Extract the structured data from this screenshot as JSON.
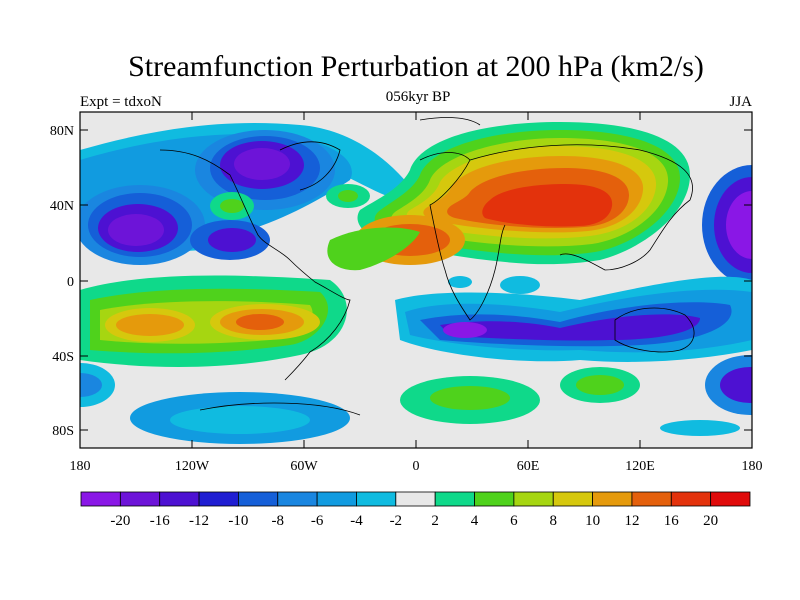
{
  "title": "Streamfunction Perturbation at 200 hPa (km2/s)",
  "left_subtitle": "Expt = tdxoN",
  "center_subtitle": "056kyr BP",
  "right_subtitle": "JJA",
  "lat_labels": [
    "80N",
    "40N",
    "0",
    "40S",
    "80S"
  ],
  "lon_labels": [
    "180",
    "120W",
    "60W",
    "0",
    "60E",
    "120E",
    "180"
  ],
  "colorbar": {
    "labels": [
      "-20",
      "-16",
      "-12",
      "-10",
      "-8",
      "-6",
      "-4",
      "-2",
      "2",
      "4",
      "6",
      "8",
      "10",
      "12",
      "16",
      "20"
    ],
    "colors": [
      "#8a17e6",
      "#6d14d8",
      "#4d11d2",
      "#1f1ed2",
      "#155fd8",
      "#1a86e0",
      "#119be0",
      "#10bbe0",
      "#e8e8e8",
      "#0fd98a",
      "#4fd21c",
      "#a6d611",
      "#d6c80d",
      "#e59a0c",
      "#e4600c",
      "#e3320c",
      "#e00b0b"
    ]
  }
}
